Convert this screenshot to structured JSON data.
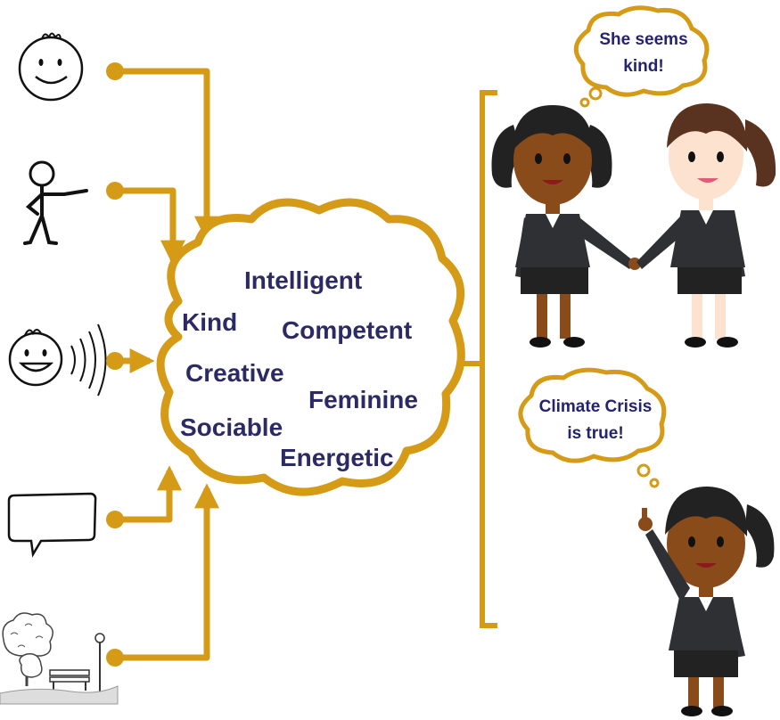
{
  "traits": {
    "t1": "Intelligent",
    "t2": "Kind",
    "t3": "Competent",
    "t4": "Creative",
    "t5": "Feminine",
    "t6": "Sociable",
    "t7": "Energetic"
  },
  "bubbles": {
    "top": {
      "line1": "She seems",
      "line2": "kind!"
    },
    "bottom": {
      "line1": "Climate Crisis",
      "line2": "is true!"
    }
  },
  "icons": [
    "face-icon",
    "stick-figure-icon",
    "speaking-face-icon",
    "speech-bubble-icon",
    "park-icon"
  ],
  "colors": {
    "connector": "#d59b17",
    "text": "#2b2a64",
    "suit": "#2f3034"
  }
}
